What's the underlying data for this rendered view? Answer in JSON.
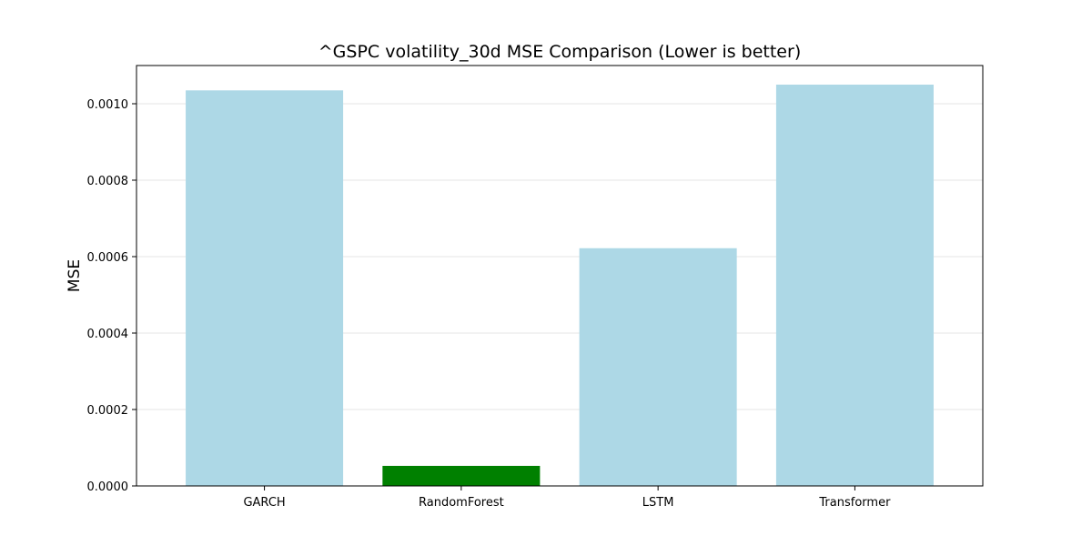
{
  "chart_data": {
    "type": "bar",
    "title": "^GSPC volatility_30d MSE Comparison (Lower is better)",
    "xlabel": "",
    "ylabel": "MSE",
    "categories": [
      "GARCH",
      "RandomForest",
      "LSTM",
      "Transformer"
    ],
    "values": [
      0.001035,
      5.25e-05,
      0.000622,
      0.00105
    ],
    "bar_colors": [
      "#add8e6",
      "#008000",
      "#add8e6",
      "#add8e6"
    ],
    "highlight_color": "#008000",
    "base_color": "#add8e6",
    "ylim": [
      0,
      0.0011
    ],
    "yticks": [
      0,
      0.0002,
      0.0004,
      0.0006,
      0.0008,
      0.001
    ],
    "ytick_labels": [
      "0.0000",
      "0.0002",
      "0.0004",
      "0.0006",
      "0.0008",
      "0.0010"
    ],
    "grid": "y-axis",
    "legend": "none"
  }
}
